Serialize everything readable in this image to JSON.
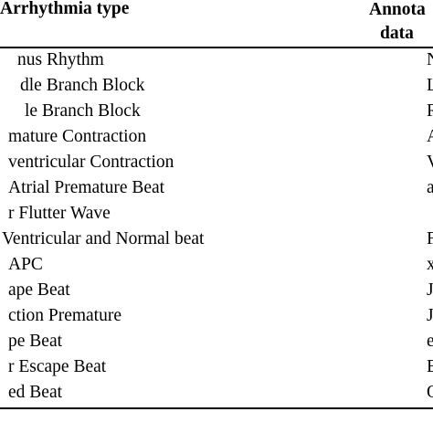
{
  "header": {
    "col_type": "Arrhythmia type",
    "col_annot_line1": "Annota",
    "col_annot_line2": "data"
  },
  "rows": [
    {
      "label": "nus Rhythm",
      "code": "N"
    },
    {
      "label": "dle Branch Block",
      "code": "L"
    },
    {
      "label": "le Branch Block",
      "code": "R"
    },
    {
      "label": "mature Contraction",
      "code": "A"
    },
    {
      "label": "ventricular Contraction",
      "code": "V"
    },
    {
      "label": "Atrial Premature Beat",
      "code": "a"
    },
    {
      "label": "r Flutter Wave",
      "code": ""
    },
    {
      "label": "Ventricular and Normal beat",
      "code": "F"
    },
    {
      "label": "APC",
      "code": "x"
    },
    {
      "label": "ape Beat",
      "code": "J"
    },
    {
      "label": "ction Premature",
      "code": "J"
    },
    {
      "label": "pe Beat",
      "code": "e"
    },
    {
      "label": "r Escape Beat",
      "code": "E"
    },
    {
      "label": "ed Beat",
      "code": "Q"
    }
  ]
}
